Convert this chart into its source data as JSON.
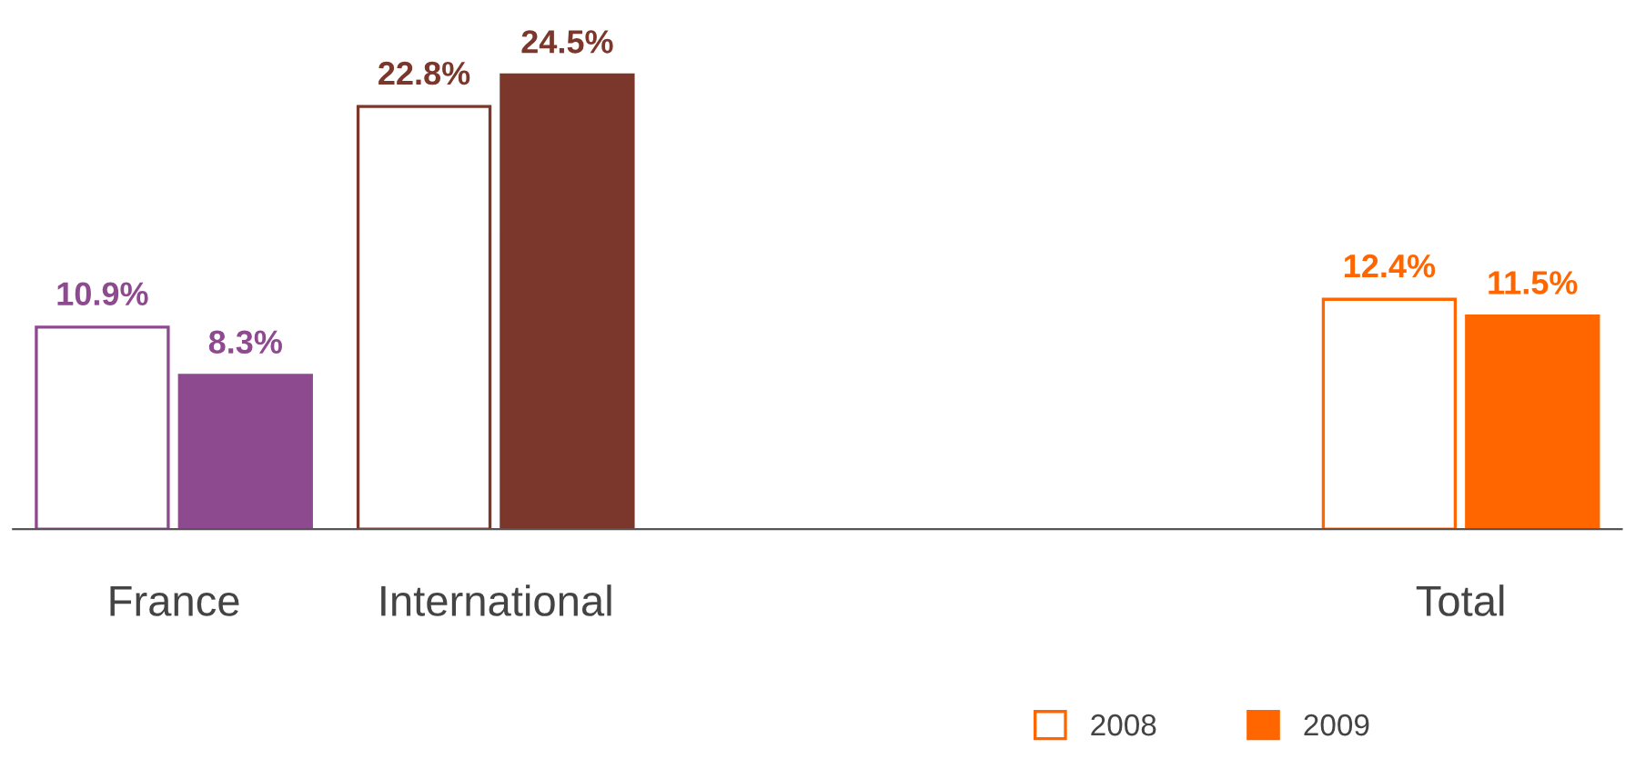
{
  "chart_data": {
    "type": "bar",
    "categories": [
      "France",
      "International",
      null,
      null,
      "Total"
    ],
    "series": [
      {
        "name": "2008",
        "color": "#ff6600",
        "colors": [
          "#8e4a8e",
          "#7b372b",
          null,
          null,
          "#ff6600"
        ],
        "values": [
          10.9,
          22.8,
          null,
          null,
          12.4
        ],
        "value_labels": [
          "10.9%",
          "22.8%",
          null,
          null,
          "12.4%"
        ]
      },
      {
        "name": "2009",
        "color": "#ff6600",
        "colors": [
          "#8e4a8e",
          "#7b372b",
          null,
          null,
          "#ff6600"
        ],
        "values": [
          8.3,
          24.5,
          null,
          null,
          11.5
        ],
        "value_labels": [
          "8.3%",
          "24.5%",
          null,
          null,
          "11.5%"
        ]
      }
    ],
    "legend": "bottom right",
    "grid": false
  }
}
